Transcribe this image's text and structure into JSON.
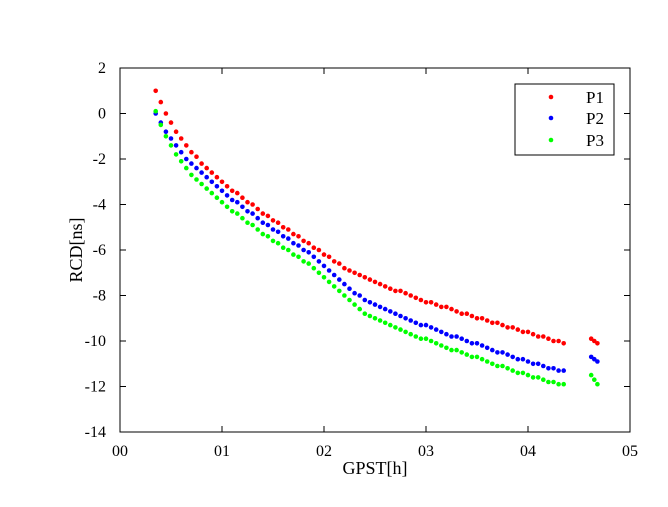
{
  "chart_data": {
    "type": "scatter",
    "title": "",
    "xlabel": "GPST[h]",
    "ylabel": "RCD[ns]",
    "xlim": [
      0,
      5
    ],
    "ylim": [
      -14,
      2
    ],
    "x_ticks": [
      0,
      1,
      2,
      3,
      4,
      5
    ],
    "x_tick_labels": [
      "00",
      "01",
      "02",
      "03",
      "04",
      "05"
    ],
    "y_ticks": [
      2,
      0,
      -2,
      -4,
      -6,
      -8,
      -10,
      -12,
      -14
    ],
    "y_tick_labels": [
      "2",
      "0",
      "-2",
      "-4",
      "-6",
      "-8",
      "-10",
      "-12",
      "-14"
    ],
    "grid": false,
    "legend_position": "top-right",
    "series": [
      {
        "name": "P1",
        "color": "#ff0000",
        "x": [
          0.35,
          0.4,
          0.45,
          0.5,
          0.55,
          0.6,
          0.65,
          0.7,
          0.75,
          0.8,
          0.85,
          0.9,
          0.95,
          1.0,
          1.05,
          1.1,
          1.15,
          1.2,
          1.25,
          1.3,
          1.35,
          1.4,
          1.45,
          1.5,
          1.55,
          1.6,
          1.65,
          1.7,
          1.75,
          1.8,
          1.85,
          1.9,
          1.95,
          2.0,
          2.05,
          2.1,
          2.15,
          2.2,
          2.25,
          2.3,
          2.35,
          2.4,
          2.45,
          2.5,
          2.55,
          2.6,
          2.65,
          2.7,
          2.75,
          2.8,
          2.85,
          2.9,
          2.95,
          3.0,
          3.05,
          3.1,
          3.15,
          3.2,
          3.25,
          3.3,
          3.35,
          3.4,
          3.45,
          3.5,
          3.55,
          3.6,
          3.65,
          3.7,
          3.75,
          3.8,
          3.85,
          3.9,
          3.95,
          4.0,
          4.05,
          4.1,
          4.15,
          4.2,
          4.25,
          4.3,
          4.35,
          4.62,
          4.65,
          4.68
        ],
        "y": [
          1.0,
          0.5,
          0.0,
          -0.4,
          -0.8,
          -1.1,
          -1.4,
          -1.7,
          -1.9,
          -2.2,
          -2.4,
          -2.6,
          -2.8,
          -3.0,
          -3.2,
          -3.4,
          -3.5,
          -3.7,
          -3.9,
          -4.0,
          -4.2,
          -4.4,
          -4.5,
          -4.7,
          -4.8,
          -5.0,
          -5.1,
          -5.3,
          -5.4,
          -5.6,
          -5.7,
          -5.9,
          -6.0,
          -6.2,
          -6.3,
          -6.5,
          -6.6,
          -6.8,
          -6.9,
          -7.0,
          -7.1,
          -7.2,
          -7.3,
          -7.4,
          -7.5,
          -7.6,
          -7.7,
          -7.8,
          -7.8,
          -7.9,
          -8.0,
          -8.1,
          -8.2,
          -8.3,
          -8.3,
          -8.4,
          -8.5,
          -8.5,
          -8.6,
          -8.7,
          -8.8,
          -8.8,
          -8.9,
          -9.0,
          -9.0,
          -9.1,
          -9.2,
          -9.2,
          -9.3,
          -9.4,
          -9.4,
          -9.5,
          -9.6,
          -9.6,
          -9.7,
          -9.8,
          -9.8,
          -9.9,
          -10.0,
          -10.0,
          -10.1,
          -9.9,
          -10.0,
          -10.1
        ]
      },
      {
        "name": "P2",
        "color": "#0000ff",
        "x": [
          0.35,
          0.4,
          0.45,
          0.5,
          0.55,
          0.6,
          0.65,
          0.7,
          0.75,
          0.8,
          0.85,
          0.9,
          0.95,
          1.0,
          1.05,
          1.1,
          1.15,
          1.2,
          1.25,
          1.3,
          1.35,
          1.4,
          1.45,
          1.5,
          1.55,
          1.6,
          1.65,
          1.7,
          1.75,
          1.8,
          1.85,
          1.9,
          1.95,
          2.0,
          2.05,
          2.1,
          2.15,
          2.2,
          2.25,
          2.3,
          2.35,
          2.4,
          2.45,
          2.5,
          2.55,
          2.6,
          2.65,
          2.7,
          2.75,
          2.8,
          2.85,
          2.9,
          2.95,
          3.0,
          3.05,
          3.1,
          3.15,
          3.2,
          3.25,
          3.3,
          3.35,
          3.4,
          3.45,
          3.5,
          3.55,
          3.6,
          3.65,
          3.7,
          3.75,
          3.8,
          3.85,
          3.9,
          3.95,
          4.0,
          4.05,
          4.1,
          4.15,
          4.2,
          4.25,
          4.3,
          4.35,
          4.62,
          4.65,
          4.68
        ],
        "y": [
          0.0,
          -0.4,
          -0.8,
          -1.1,
          -1.4,
          -1.7,
          -2.0,
          -2.2,
          -2.4,
          -2.6,
          -2.8,
          -3.0,
          -3.2,
          -3.4,
          -3.6,
          -3.8,
          -3.9,
          -4.1,
          -4.3,
          -4.4,
          -4.6,
          -4.8,
          -4.9,
          -5.1,
          -5.2,
          -5.4,
          -5.5,
          -5.7,
          -5.8,
          -6.0,
          -6.1,
          -6.3,
          -6.5,
          -6.7,
          -6.9,
          -7.1,
          -7.3,
          -7.5,
          -7.7,
          -7.9,
          -8.0,
          -8.2,
          -8.3,
          -8.4,
          -8.5,
          -8.6,
          -8.7,
          -8.8,
          -8.9,
          -9.0,
          -9.1,
          -9.2,
          -9.3,
          -9.3,
          -9.4,
          -9.5,
          -9.6,
          -9.7,
          -9.8,
          -9.8,
          -9.9,
          -10.0,
          -10.1,
          -10.1,
          -10.2,
          -10.3,
          -10.4,
          -10.5,
          -10.5,
          -10.6,
          -10.7,
          -10.8,
          -10.8,
          -10.9,
          -11.0,
          -11.0,
          -11.1,
          -11.2,
          -11.2,
          -11.3,
          -11.3,
          -10.7,
          -10.8,
          -10.9
        ]
      },
      {
        "name": "P3",
        "color": "#00ff00",
        "x": [
          0.35,
          0.4,
          0.45,
          0.5,
          0.55,
          0.6,
          0.65,
          0.7,
          0.75,
          0.8,
          0.85,
          0.9,
          0.95,
          1.0,
          1.05,
          1.1,
          1.15,
          1.2,
          1.25,
          1.3,
          1.35,
          1.4,
          1.45,
          1.5,
          1.55,
          1.6,
          1.65,
          1.7,
          1.75,
          1.8,
          1.85,
          1.9,
          1.95,
          2.0,
          2.05,
          2.1,
          2.15,
          2.2,
          2.25,
          2.3,
          2.35,
          2.4,
          2.45,
          2.5,
          2.55,
          2.6,
          2.65,
          2.7,
          2.75,
          2.8,
          2.85,
          2.9,
          2.95,
          3.0,
          3.05,
          3.1,
          3.15,
          3.2,
          3.25,
          3.3,
          3.35,
          3.4,
          3.45,
          3.5,
          3.55,
          3.6,
          3.65,
          3.7,
          3.75,
          3.8,
          3.85,
          3.9,
          3.95,
          4.0,
          4.05,
          4.1,
          4.15,
          4.2,
          4.25,
          4.3,
          4.35,
          4.62,
          4.65,
          4.68
        ],
        "y": [
          0.1,
          -0.5,
          -1.0,
          -1.4,
          -1.8,
          -2.1,
          -2.4,
          -2.7,
          -2.9,
          -3.1,
          -3.3,
          -3.5,
          -3.7,
          -3.9,
          -4.1,
          -4.3,
          -4.4,
          -4.6,
          -4.8,
          -4.9,
          -5.1,
          -5.3,
          -5.4,
          -5.6,
          -5.7,
          -5.9,
          -6.0,
          -6.2,
          -6.3,
          -6.5,
          -6.6,
          -6.8,
          -7.0,
          -7.2,
          -7.4,
          -7.6,
          -7.8,
          -8.0,
          -8.2,
          -8.4,
          -8.6,
          -8.8,
          -8.9,
          -9.0,
          -9.1,
          -9.2,
          -9.3,
          -9.4,
          -9.5,
          -9.6,
          -9.7,
          -9.8,
          -9.9,
          -9.9,
          -10.0,
          -10.1,
          -10.2,
          -10.3,
          -10.4,
          -10.4,
          -10.5,
          -10.6,
          -10.7,
          -10.7,
          -10.8,
          -10.9,
          -11.0,
          -11.1,
          -11.1,
          -11.2,
          -11.3,
          -11.4,
          -11.4,
          -11.5,
          -11.6,
          -11.6,
          -11.7,
          -11.8,
          -11.8,
          -11.9,
          -11.9,
          -11.5,
          -11.7,
          -11.9
        ]
      }
    ]
  }
}
